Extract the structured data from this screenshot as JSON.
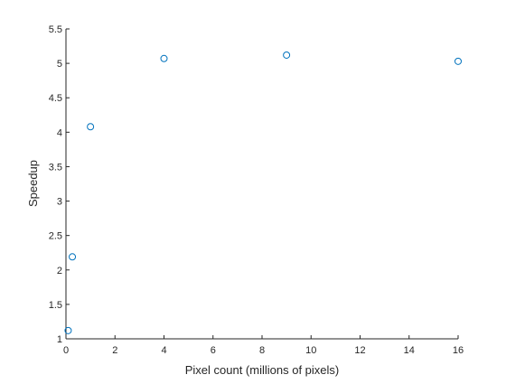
{
  "chart_data": {
    "type": "scatter",
    "xlabel": "Pixel count (millions of pixels)",
    "ylabel": "Speedup",
    "xlim": [
      0,
      16
    ],
    "ylim": [
      1,
      5.5
    ],
    "grid": false,
    "x_ticks": [
      {
        "value": 0,
        "label": "0"
      },
      {
        "value": 2,
        "label": "2"
      },
      {
        "value": 4,
        "label": "4"
      },
      {
        "value": 6,
        "label": "6"
      },
      {
        "value": 8,
        "label": "8"
      },
      {
        "value": 10,
        "label": "10"
      },
      {
        "value": 12,
        "label": "12"
      },
      {
        "value": 14,
        "label": "14"
      },
      {
        "value": 16,
        "label": "16"
      }
    ],
    "y_ticks": [
      {
        "value": 1,
        "label": "1"
      },
      {
        "value": 1.5,
        "label": "1.5"
      },
      {
        "value": 2,
        "label": "2"
      },
      {
        "value": 2.5,
        "label": "2.5"
      },
      {
        "value": 3,
        "label": "3"
      },
      {
        "value": 3.5,
        "label": "3.5"
      },
      {
        "value": 4,
        "label": "4"
      },
      {
        "value": 4.5,
        "label": "4.5"
      },
      {
        "value": 5,
        "label": "5"
      },
      {
        "value": 5.5,
        "label": "5.5"
      }
    ],
    "series": [
      {
        "marker": "open-circle",
        "color": "#0072bd",
        "points": [
          {
            "x": 0.09,
            "y": 1.12
          },
          {
            "x": 0.26,
            "y": 2.19
          },
          {
            "x": 1.0,
            "y": 4.08
          },
          {
            "x": 4.0,
            "y": 5.07
          },
          {
            "x": 9.0,
            "y": 5.12
          },
          {
            "x": 16.0,
            "y": 5.03
          }
        ]
      }
    ]
  }
}
